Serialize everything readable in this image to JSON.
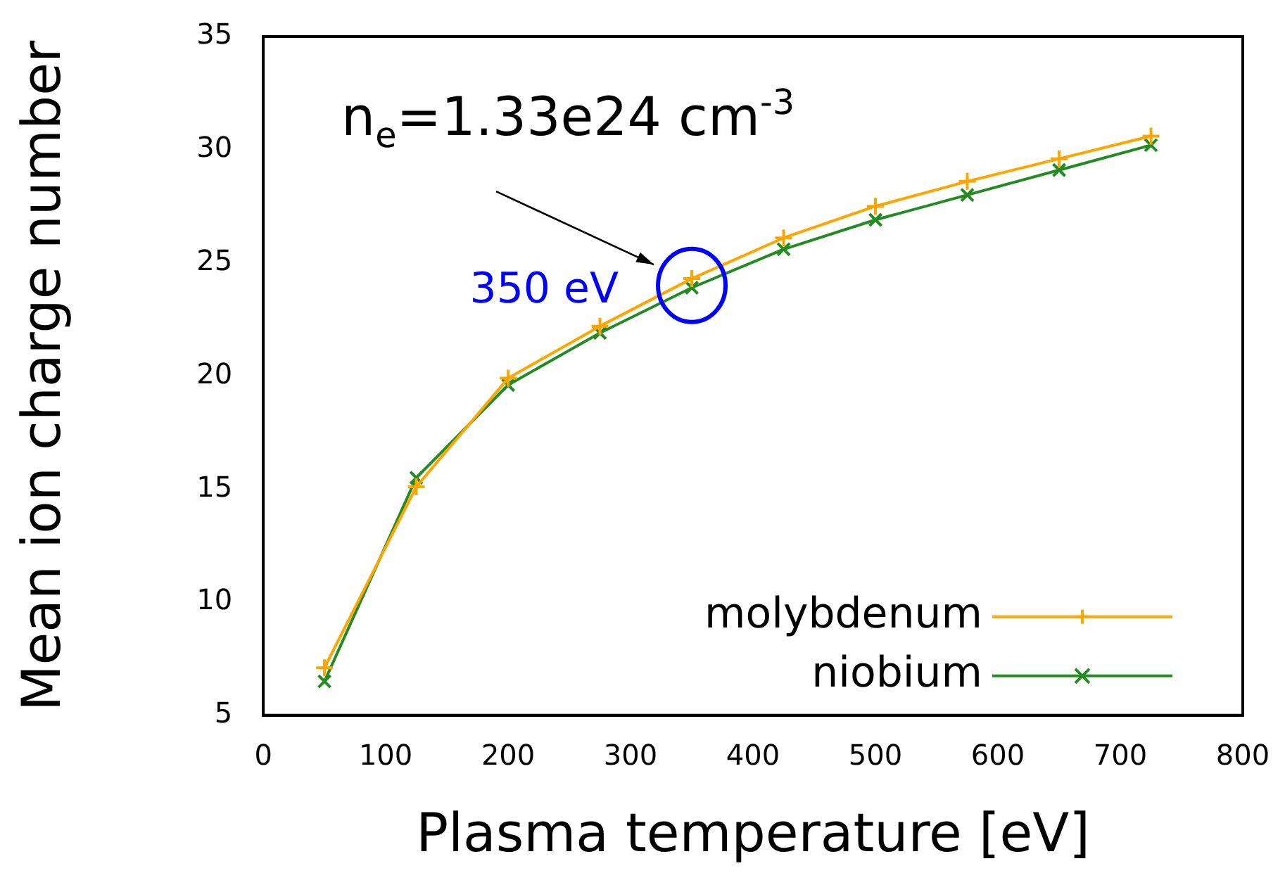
{
  "chart_data": {
    "type": "line",
    "xlabel": "Plasma temperature [eV]",
    "ylabel": "Mean ion charge number",
    "x": [
      50,
      125,
      200,
      275,
      350,
      425,
      500,
      575,
      650,
      725
    ],
    "series": [
      {
        "name": "molybdenum",
        "color": "#ffa500",
        "marker": "plus",
        "values": [
          7.1,
          15.1,
          19.9,
          22.2,
          24.3,
          26.1,
          27.5,
          28.6,
          29.6,
          30.6
        ]
      },
      {
        "name": "niobium",
        "color": "#228b22",
        "marker": "cross",
        "values": [
          6.5,
          15.5,
          19.6,
          21.9,
          23.9,
          25.6,
          26.9,
          28.0,
          29.1,
          30.2
        ]
      }
    ],
    "xlim": [
      0,
      800
    ],
    "xticks": [
      0,
      100,
      200,
      300,
      400,
      500,
      600,
      700,
      800
    ],
    "ylim": [
      5,
      35
    ],
    "yticks": [
      5,
      10,
      15,
      20,
      25,
      30,
      35
    ],
    "grid": false,
    "legend": "bottom right",
    "line_style": "solid",
    "annotations": [
      {
        "text": "n$_{e}$=1.33e24 cm$^{-3}$",
        "x": 350,
        "y": 24.3
      },
      {
        "text": "350 eV",
        "x": 350,
        "y": 24
      }
    ]
  }
}
